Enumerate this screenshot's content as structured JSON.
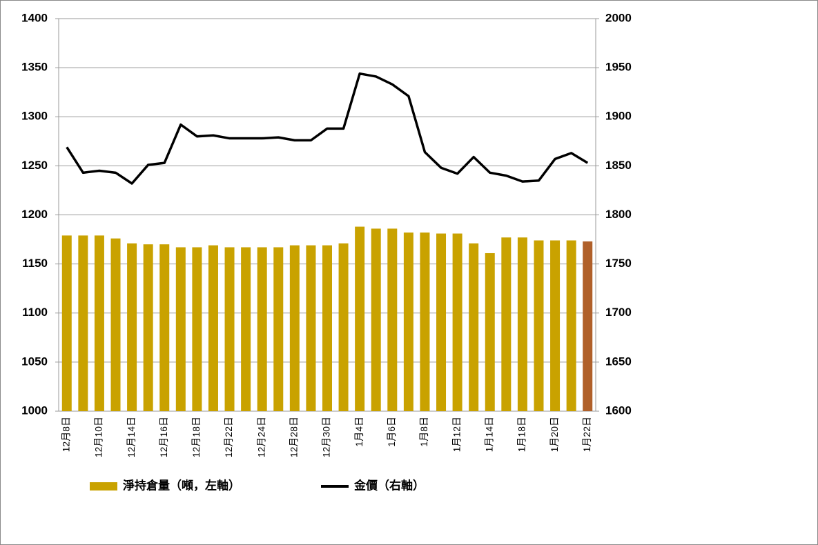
{
  "chart_data": {
    "type": "bar-line",
    "categories": [
      "12月8日",
      null,
      "12月10日",
      null,
      "12月14日",
      null,
      "12月16日",
      null,
      "12月18日",
      null,
      "12月22日",
      null,
      "12月24日",
      null,
      "12月28日",
      null,
      "12月30日",
      null,
      "1月4日",
      null,
      "1月6日",
      null,
      "1月8日",
      null,
      "1月12日",
      null,
      "1月14日",
      null,
      "1月18日",
      null,
      "1月20日",
      null,
      "1月22日"
    ],
    "series": [
      {
        "name": "淨持倉量（噸，左軸）",
        "type": "bar",
        "color": "#c9a200",
        "colors": [
          "#c9a200",
          "#c9a200",
          "#c9a200",
          "#c9a200",
          "#c9a200",
          "#c9a200",
          "#c9a200",
          "#c9a200",
          "#c9a200",
          "#c9a200",
          "#c9a200",
          "#c9a200",
          "#c9a200",
          "#c9a200",
          "#c9a200",
          "#c9a200",
          "#c9a200",
          "#c9a200",
          "#c9a200",
          "#c9a200",
          "#c9a200",
          "#c9a200",
          "#c9a200",
          "#c9a200",
          "#c9a200",
          "#c9a200",
          "#c9a200",
          "#c9a200",
          "#c9a200",
          "#c9a200",
          "#c9a200",
          "#c9a200",
          "#b0602a"
        ],
        "values": [
          1179,
          1179,
          1179,
          1176,
          1171,
          1170,
          1170,
          1167,
          1167,
          1169,
          1167,
          1167,
          1167,
          1167,
          1169,
          1169,
          1169,
          1171,
          1188,
          1186,
          1186,
          1182,
          1182,
          1181,
          1181,
          1171,
          1161,
          1177,
          1177,
          1174,
          1174,
          1174,
          1173
        ]
      },
      {
        "name": "金價（右軸）",
        "type": "line",
        "axis": "y2",
        "color": "#000000",
        "values": [
          1869,
          1843,
          1845,
          1843,
          1832,
          1851,
          1853,
          1892,
          1880,
          1881,
          1878,
          1878,
          1878,
          1879,
          1876,
          1876,
          1888,
          1888,
          1944,
          1941,
          1933,
          1921,
          1864,
          1848,
          1842,
          1859,
          1843,
          1840,
          1834,
          1835,
          1857,
          1863,
          1853
        ]
      }
    ],
    "ylim": [
      1000,
      1400
    ],
    "yticks": [
      1000,
      1050,
      1100,
      1150,
      1200,
      1250,
      1300,
      1350,
      1400
    ],
    "y2lim": [
      1600,
      2000
    ],
    "y2ticks": [
      1600,
      1650,
      1700,
      1750,
      1800,
      1850,
      1900,
      1950,
      2000
    ],
    "grid": true,
    "legend": "bottom"
  }
}
